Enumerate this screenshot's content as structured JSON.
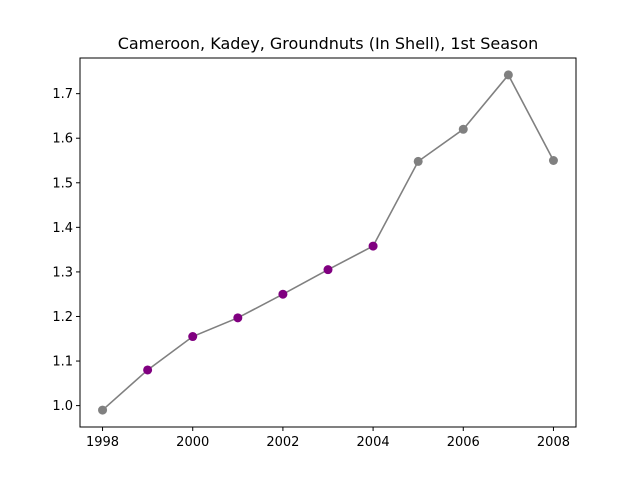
{
  "chart_data": {
    "type": "line",
    "title": "Cameroon, Kadey, Groundnuts (In Shell), 1st Season",
    "xlabel": "",
    "ylabel": "",
    "x": [
      1998,
      1999,
      2000,
      2001,
      2002,
      2003,
      2004,
      2005,
      2006,
      2007,
      2008
    ],
    "series": [
      {
        "values": [
          0.99,
          1.08,
          1.155,
          1.197,
          1.25,
          1.305,
          1.358,
          1.548,
          1.62,
          1.742,
          1.55
        ],
        "line_color": "#808080",
        "marker_colors": [
          "#808080",
          "#800080",
          "#800080",
          "#800080",
          "#800080",
          "#800080",
          "#800080",
          "#808080",
          "#808080",
          "#808080",
          "#808080"
        ]
      }
    ],
    "xlim": [
      1997.5,
      2008.5
    ],
    "ylim": [
      0.952,
      1.78
    ],
    "x_ticks": [
      "1998",
      "2000",
      "2002",
      "2004",
      "2006",
      "2008"
    ],
    "y_ticks": [
      "1.0",
      "1.1",
      "1.2",
      "1.3",
      "1.4",
      "1.5",
      "1.6",
      "1.7"
    ],
    "grid": false,
    "legend": "none"
  }
}
